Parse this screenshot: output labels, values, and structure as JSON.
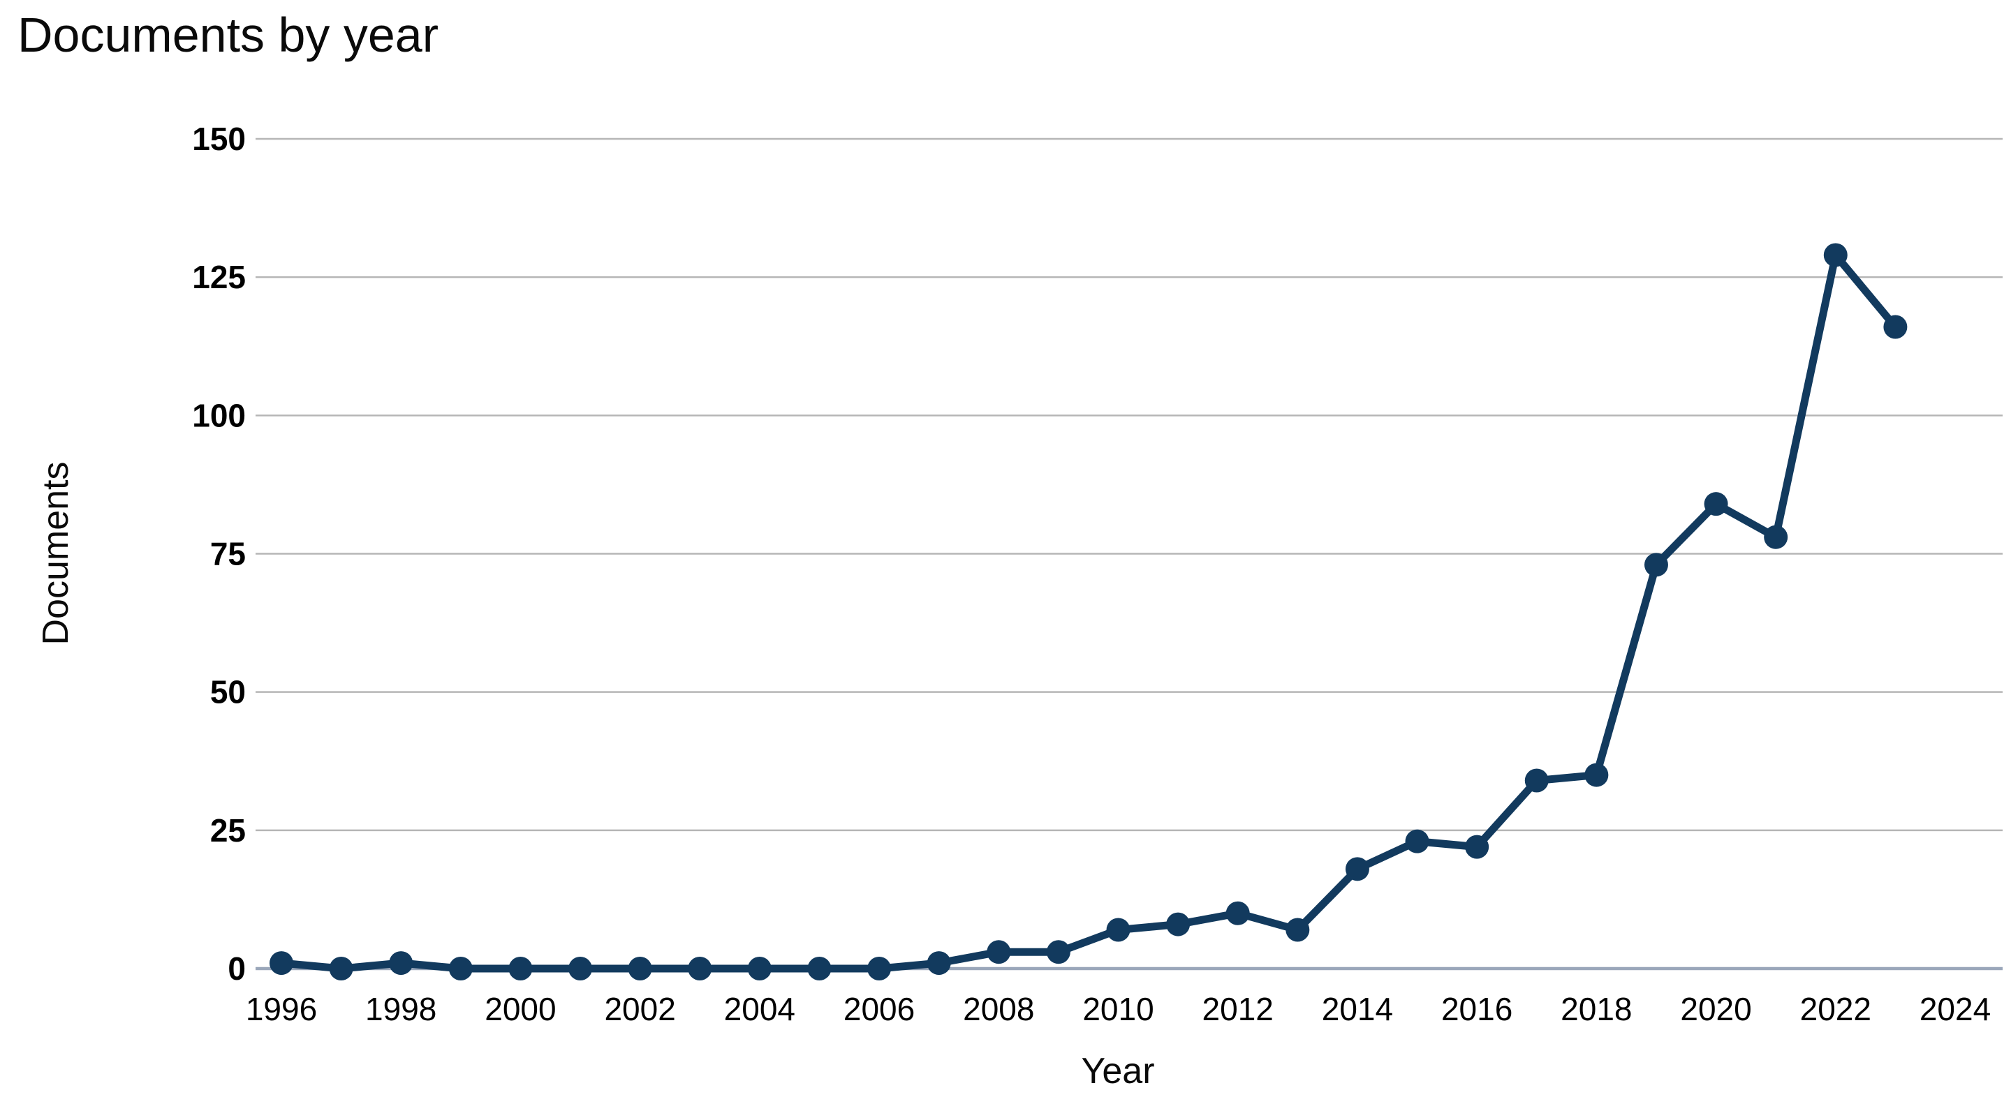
{
  "chart_data": {
    "type": "line",
    "title": "Documents by year",
    "xlabel": "Year",
    "ylabel": "Documents",
    "series": [
      {
        "name": "Documents",
        "x": [
          1996,
          1997,
          1998,
          1999,
          2000,
          2001,
          2002,
          2003,
          2004,
          2005,
          2006,
          2007,
          2008,
          2009,
          2010,
          2011,
          2012,
          2013,
          2014,
          2015,
          2016,
          2017,
          2018,
          2019,
          2020,
          2021,
          2022,
          2023
        ],
        "values": [
          1,
          0,
          1,
          0,
          0,
          0,
          0,
          0,
          0,
          0,
          0,
          1,
          3,
          3,
          7,
          8,
          10,
          7,
          18,
          23,
          22,
          34,
          35,
          73,
          84,
          78,
          129,
          116
        ]
      }
    ],
    "xticks": [
      "1996",
      "1998",
      "2000",
      "2002",
      "2004",
      "2006",
      "2008",
      "2010",
      "2012",
      "2014",
      "2016",
      "2018",
      "2020",
      "2022",
      "2024"
    ],
    "yticks": [
      "0",
      "25",
      "50",
      "75",
      "100",
      "125",
      "150"
    ],
    "xlim": [
      1996,
      2024
    ],
    "ylim": [
      0,
      150
    ],
    "grid": "horizontal",
    "legend": "none",
    "colors": {
      "series": "#123a5e",
      "gridline": "#b6b6b6",
      "axis": "#9aa7ba",
      "text": "#000000"
    }
  }
}
